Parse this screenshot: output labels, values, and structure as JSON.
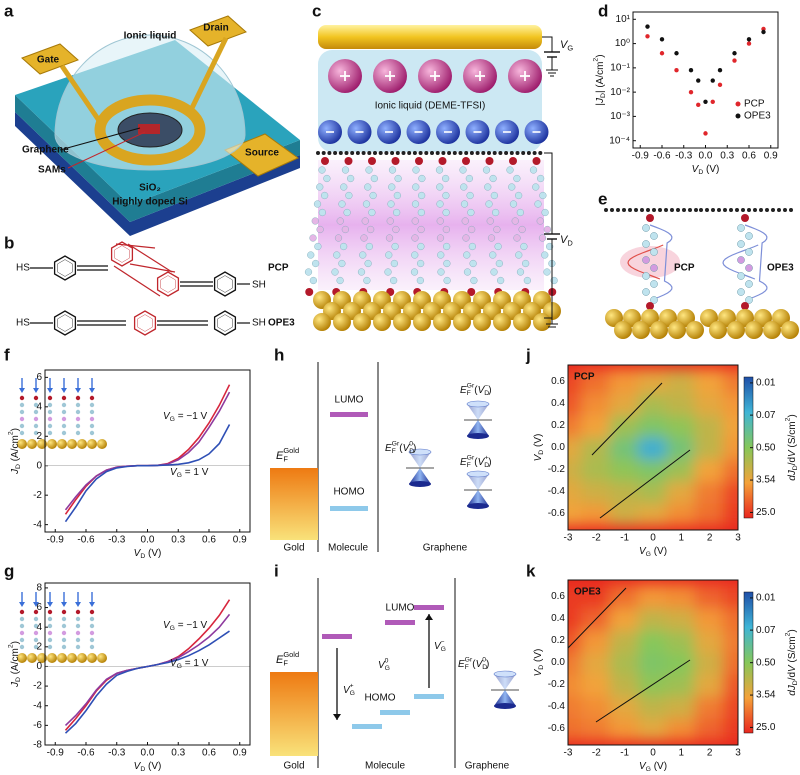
{
  "panel_letters": [
    "a",
    "b",
    "c",
    "d",
    "e",
    "f",
    "g",
    "h",
    "i",
    "j",
    "k"
  ],
  "device": {
    "labels": [
      "Gate",
      "Ionic liquid",
      "Drain",
      "Graphene",
      "SAMs",
      "Source"
    ],
    "substrate": [
      "SiO₂",
      "Highly doped Si"
    ]
  },
  "molecules": {
    "names": [
      "PCP",
      "OPE3"
    ],
    "end_left": "HS",
    "end_right": "SH"
  },
  "junction": {
    "electrolyte": "Ionic liquid (DEME-TFSI)",
    "gate_voltage": [
      {
        "t": "V",
        "i": true
      },
      {
        "t": "G",
        "sub": true
      }
    ],
    "drain_voltage": [
      {
        "t": "V",
        "i": true
      },
      {
        "t": "D",
        "sub": true
      }
    ]
  },
  "junction_models": {
    "names": [
      "PCP",
      "OPE3"
    ]
  },
  "chart_data": [
    {
      "type": "scatter",
      "log_y": true,
      "legend": "lower right",
      "x": [
        -0.8,
        -0.6,
        -0.4,
        -0.2,
        -0.1,
        0,
        0.1,
        0.2,
        0.4,
        0.6,
        0.8
      ],
      "series": [
        {
          "name": "PCP",
          "color": "#e0262b",
          "values": [
            2,
            0.4,
            0.08,
            0.01,
            0.003,
            0.0002,
            0.004,
            0.02,
            0.2,
            1,
            4
          ]
        },
        {
          "name": "OPE3",
          "color": "#111111",
          "values": [
            5,
            1.5,
            0.4,
            0.08,
            0.03,
            0.004,
            0.03,
            0.08,
            0.4,
            1.5,
            3
          ]
        }
      ],
      "xlim": [
        -1,
        1
      ],
      "xticks": [
        -0.9,
        -0.6,
        -0.3,
        {
          "value": 0,
          "label": "0.0"
        },
        0.3,
        0.6,
        0.9
      ],
      "ylim": [
        5e-05,
        20
      ],
      "yticks": [
        {
          "value": 0.0001,
          "label": "10⁻⁴"
        },
        {
          "value": 0.001,
          "label": "10⁻³"
        },
        {
          "value": 0.01,
          "label": "10⁻²"
        },
        {
          "value": 0.1,
          "label": "10⁻¹"
        },
        {
          "value": 1,
          "label": "10⁰"
        },
        {
          "value": 10,
          "label": "10¹"
        }
      ],
      "x_label": [
        {
          "t": "V",
          "i": true
        },
        {
          "t": "D",
          "sub": true
        },
        {
          "t": " (V)"
        }
      ],
      "y_label": [
        {
          "t": "|"
        },
        {
          "t": "J",
          "i": true
        },
        {
          "t": "D",
          "sub": true
        },
        {
          "t": "| (A/cm"
        },
        {
          "t": "2",
          "sup": true
        },
        {
          "t": ")"
        }
      ]
    },
    {
      "type": "line",
      "x": [
        -0.8,
        -0.7,
        -0.6,
        -0.5,
        -0.4,
        -0.3,
        -0.2,
        -0.1,
        0,
        0.1,
        0.2,
        0.3,
        0.4,
        0.5,
        0.6,
        0.7,
        0.8
      ],
      "series": [
        {
          "color": "#d7263d",
          "values": [
            -3.3,
            -2.3,
            -1.4,
            -0.7,
            -0.3,
            -0.1,
            -0.03,
            0,
            0,
            0.03,
            0.15,
            0.5,
            1.1,
            1.9,
            2.9,
            4.1,
            5.5
          ]
        },
        {
          "color": "#8e3a9e",
          "values": [
            -3.0,
            -2.1,
            -1.3,
            -0.7,
            -0.3,
            -0.1,
            -0.03,
            0,
            0,
            0.03,
            0.12,
            0.4,
            0.9,
            1.6,
            2.6,
            3.7,
            5.0
          ]
        },
        {
          "color": "#2e4fb5",
          "values": [
            -3.8,
            -2.8,
            -1.7,
            -0.9,
            -0.4,
            -0.15,
            -0.05,
            0,
            0,
            0.02,
            0.05,
            0.1,
            0.2,
            0.4,
            0.8,
            1.5,
            2.8
          ]
        }
      ],
      "xlim": [
        -1,
        1
      ],
      "xticks": [
        -0.9,
        -0.6,
        -0.3,
        {
          "value": 0,
          "label": "0.0"
        },
        0.3,
        0.6,
        0.9
      ],
      "ylim": [
        -4.5,
        6.5
      ],
      "yticks": [
        -4,
        -2,
        0,
        2,
        4,
        6
      ],
      "x_label": [
        {
          "t": "V",
          "i": true
        },
        {
          "t": "D",
          "sub": true
        },
        {
          "t": " (V)"
        }
      ],
      "y_label": [
        {
          "t": "J",
          "i": true
        },
        {
          "t": "D",
          "sub": true
        },
        {
          "t": " (A/cm"
        },
        {
          "t": "2",
          "sup": true
        },
        {
          "t": ")"
        }
      ],
      "annotations": [
        [
          {
            "t": "V",
            "i": true
          },
          {
            "t": "G",
            "sub": true
          },
          {
            "t": " = −1 V"
          }
        ],
        [
          {
            "t": "V",
            "i": true
          },
          {
            "t": "G",
            "sub": true
          },
          {
            "t": " = 1 V"
          }
        ]
      ]
    },
    {
      "type": "line",
      "x": [
        -0.8,
        -0.7,
        -0.6,
        -0.5,
        -0.4,
        -0.3,
        -0.2,
        -0.1,
        0,
        0.1,
        0.2,
        0.3,
        0.4,
        0.5,
        0.6,
        0.7,
        0.8
      ],
      "series": [
        {
          "color": "#d7263d",
          "values": [
            -6.5,
            -5.3,
            -4.0,
            -2.5,
            -1.4,
            -0.7,
            -0.4,
            -0.2,
            0,
            0.2,
            0.5,
            1.0,
            1.8,
            2.8,
            3.9,
            5.2,
            6.8
          ]
        },
        {
          "color": "#8e3a9e",
          "values": [
            -6.0,
            -5.0,
            -3.8,
            -2.4,
            -1.3,
            -0.7,
            -0.4,
            -0.2,
            0,
            0.2,
            0.5,
            0.9,
            1.5,
            2.2,
            3.0,
            4.0,
            5.3
          ]
        },
        {
          "color": "#2e4fb5",
          "values": [
            -6.8,
            -5.8,
            -4.5,
            -3.0,
            -1.8,
            -0.9,
            -0.5,
            -0.2,
            0,
            0.2,
            0.4,
            0.7,
            1.1,
            1.6,
            2.2,
            2.9,
            3.6
          ]
        }
      ],
      "xlim": [
        -1,
        1
      ],
      "xticks": [
        -0.9,
        -0.6,
        -0.3,
        {
          "value": 0,
          "label": "0.0"
        },
        0.3,
        0.6,
        0.9
      ],
      "ylim": [
        -8,
        8.5
      ],
      "yticks": [
        -8,
        -6,
        -4,
        -2,
        0,
        2,
        4,
        6,
        8
      ],
      "x_label": [
        {
          "t": "V",
          "i": true
        },
        {
          "t": "D",
          "sub": true
        },
        {
          "t": " (V)"
        }
      ],
      "y_label": [
        {
          "t": "J",
          "i": true
        },
        {
          "t": "D",
          "sub": true
        },
        {
          "t": " (A/cm"
        },
        {
          "t": "2",
          "sup": true
        },
        {
          "t": ")"
        }
      ],
      "annotations": [
        [
          {
            "t": "V",
            "i": true
          },
          {
            "t": "G",
            "sub": true
          },
          {
            "t": " = −1 V"
          }
        ],
        [
          {
            "t": "V",
            "i": true
          },
          {
            "t": "G",
            "sub": true
          },
          {
            "t": " = 1 V"
          }
        ]
      ]
    },
    {
      "type": "heatmap",
      "title": "PCP",
      "x": [
        -3,
        -2,
        -1,
        0,
        1,
        2,
        3
      ],
      "y": [
        -0.6,
        -0.4,
        -0.2,
        0,
        0.2,
        0.4,
        0.6
      ],
      "values": [
        [
          4,
          5,
          2,
          3,
          6,
          10,
          25
        ],
        [
          3,
          2,
          1.5,
          1.0,
          3,
          8,
          20
        ],
        [
          2,
          1,
          0.6,
          0.4,
          0.8,
          4,
          10
        ],
        [
          3,
          1.2,
          0.3,
          0.05,
          0.3,
          1.5,
          5
        ],
        [
          8,
          4,
          0.8,
          0.4,
          0.6,
          1.5,
          4
        ],
        [
          15,
          6,
          3,
          1,
          1.5,
          3,
          5
        ],
        [
          20,
          10,
          5,
          3,
          2,
          4,
          8
        ]
      ],
      "xlim": [
        -3,
        3
      ],
      "xticks": [
        -3,
        -2,
        -1,
        0,
        1,
        2,
        3
      ],
      "ylim": [
        -0.75,
        0.75
      ],
      "yticks": [
        -0.6,
        -0.4,
        -0.2,
        {
          "value": 0,
          "label": "0.0"
        },
        0.2,
        0.4,
        0.6
      ],
      "clim": [
        0.007,
        35
      ],
      "colormap": [
        "#1f4fa8",
        "#3fb5d6",
        "#86c75a",
        "#f4a23a",
        "#e8261f"
      ],
      "colorbar_ticks": [
        0.01,
        0.07,
        {
          "value": 0.5,
          "label": "0.50"
        },
        3.54,
        {
          "value": 25,
          "label": "25.0"
        }
      ],
      "x_label": [
        {
          "t": "V",
          "i": true
        },
        {
          "t": "G",
          "sub": true
        },
        {
          "t": " (V)"
        }
      ],
      "y_label": [
        {
          "t": "V",
          "i": true
        },
        {
          "t": "D",
          "sub": true
        },
        {
          "t": " (V)"
        }
      ],
      "colorbar_label": [
        {
          "t": "dJ",
          "i": true
        },
        {
          "t": "D",
          "sub": true
        },
        {
          "t": "/d"
        },
        {
          "t": "V",
          "i": true
        },
        {
          "t": " (S/cm"
        },
        {
          "t": "2",
          "sup": true
        },
        {
          "t": ")"
        }
      ]
    },
    {
      "type": "heatmap",
      "title": "OPE3",
      "x": [
        -3,
        -2,
        -1,
        0,
        1,
        2,
        3
      ],
      "y": [
        -0.6,
        -0.4,
        -0.2,
        0,
        0.2,
        0.4,
        0.6
      ],
      "values": [
        [
          10,
          8,
          5,
          3,
          6,
          12,
          25
        ],
        [
          8,
          6,
          3,
          1.5,
          2,
          8,
          20
        ],
        [
          6,
          4,
          1.5,
          0.6,
          0.8,
          3,
          15
        ],
        [
          8,
          3,
          1,
          0.4,
          0.5,
          2,
          10
        ],
        [
          15,
          5,
          1.5,
          0.5,
          0.8,
          3,
          8
        ],
        [
          25,
          12,
          4,
          1.5,
          2,
          5,
          10
        ],
        [
          25,
          25,
          10,
          5,
          6,
          12,
          20
        ]
      ],
      "xlim": [
        -3,
        3
      ],
      "xticks": [
        -3,
        -2,
        -1,
        0,
        1,
        2,
        3
      ],
      "ylim": [
        -0.75,
        0.75
      ],
      "yticks": [
        -0.6,
        -0.4,
        -0.2,
        {
          "value": 0,
          "label": "0.0"
        },
        0.2,
        0.4,
        0.6
      ],
      "clim": [
        0.007,
        35
      ],
      "colormap": [
        "#1f4fa8",
        "#3fb5d6",
        "#86c75a",
        "#f4a23a",
        "#e8261f"
      ],
      "colorbar_ticks": [
        0.01,
        0.07,
        {
          "value": 0.5,
          "label": "0.50"
        },
        3.54,
        {
          "value": 25,
          "label": "25.0"
        }
      ],
      "x_label": [
        {
          "t": "V",
          "i": true
        },
        {
          "t": "G",
          "sub": true
        },
        {
          "t": " (V)"
        }
      ],
      "y_label": [
        {
          "t": "V",
          "i": true
        },
        {
          "t": "D",
          "sub": true
        },
        {
          "t": " (V)"
        }
      ],
      "colorbar_label": [
        {
          "t": "dJ",
          "i": true
        },
        {
          "t": "D",
          "sub": true
        },
        {
          "t": "/d"
        },
        {
          "t": "V",
          "i": true
        },
        {
          "t": " (S/cm"
        },
        {
          "t": "2",
          "sup": true
        },
        {
          "t": ")"
        }
      ]
    }
  ],
  "energy_diagrams": [
    {
      "regions": [
        "Gold",
        "Molecule",
        "Graphene"
      ],
      "levels": [
        "LUMO",
        "HOMO"
      ],
      "gold_fermi": [
        {
          "t": "E",
          "i": true
        },
        {
          "t": "F",
          "sub": true
        },
        {
          "t": "Gold",
          "sup": true,
          "stack": true
        }
      ],
      "graphene_levels": [
        [
          {
            "t": "E",
            "i": true
          },
          {
            "t": "F",
            "sub": true
          },
          {
            "t": "Gr",
            "sup": true,
            "stack": true
          },
          {
            "t": "("
          },
          {
            "t": "V",
            "i": true
          },
          {
            "t": "D",
            "sub": true
          },
          {
            "t": "0",
            "sup": true,
            "stack": true
          },
          {
            "t": ")"
          }
        ],
        [
          {
            "t": "E",
            "i": true
          },
          {
            "t": "F",
            "sub": true
          },
          {
            "t": "Gr",
            "sup": true,
            "stack": true
          },
          {
            "t": "("
          },
          {
            "t": "V",
            "i": true
          },
          {
            "t": "D",
            "sub": true
          },
          {
            "t": "−",
            "sup": true,
            "stack": true
          },
          {
            "t": ")"
          }
        ],
        [
          {
            "t": "E",
            "i": true
          },
          {
            "t": "F",
            "sub": true
          },
          {
            "t": "Gr",
            "sup": true,
            "stack": true
          },
          {
            "t": "("
          },
          {
            "t": "V",
            "i": true
          },
          {
            "t": "D",
            "sub": true
          },
          {
            "t": "+",
            "sup": true,
            "stack": true
          },
          {
            "t": ")"
          }
        ]
      ]
    },
    {
      "regions": [
        "Gold",
        "Molecule",
        "Graphene"
      ],
      "levels": [
        "LUMO",
        "HOMO"
      ],
      "gold_fermi": [
        {
          "t": "E",
          "i": true
        },
        {
          "t": "F",
          "sub": true
        },
        {
          "t": "Gold",
          "sup": true,
          "stack": true
        }
      ],
      "gate_labels": [
        [
          {
            "t": "V",
            "i": true
          },
          {
            "t": "G",
            "sub": true
          },
          {
            "t": "+",
            "sup": true,
            "stack": true
          }
        ],
        [
          {
            "t": "V",
            "i": true
          },
          {
            "t": "G",
            "sub": true
          },
          {
            "t": "0",
            "sup": true,
            "stack": true
          }
        ],
        [
          {
            "t": "V",
            "i": true
          },
          {
            "t": "G",
            "sub": true
          },
          {
            "t": "−",
            "sup": true,
            "stack": true
          }
        ]
      ],
      "graphene_levels": [
        [
          {
            "t": "E",
            "i": true
          },
          {
            "t": "F",
            "sub": true
          },
          {
            "t": "Gr",
            "sup": true,
            "stack": true
          },
          {
            "t": "("
          },
          {
            "t": "V",
            "i": true
          },
          {
            "t": "D",
            "sub": true
          },
          {
            "t": "0",
            "sup": true,
            "stack": true
          },
          {
            "t": ")"
          }
        ]
      ]
    }
  ]
}
